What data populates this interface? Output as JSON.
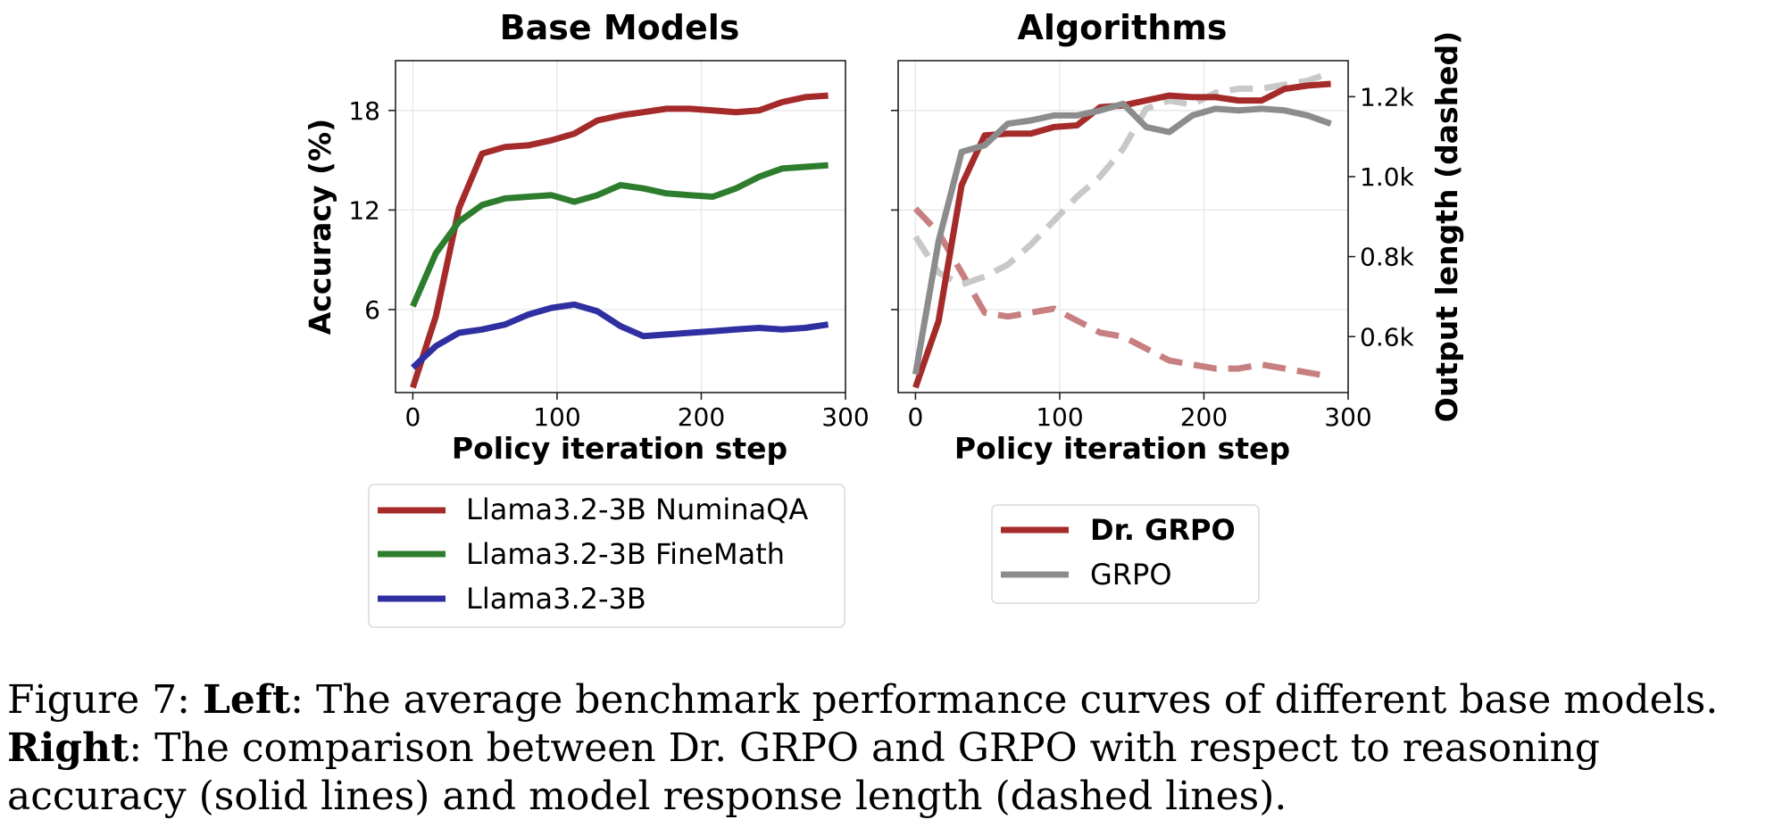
{
  "chart_data": [
    {
      "type": "line",
      "title": "Base Models",
      "xlabel": "Policy iteration step",
      "ylabel": "Accuracy (%)",
      "xlim": [
        -12,
        300
      ],
      "ylim": [
        1,
        21
      ],
      "xticks": [
        0,
        100,
        200,
        300
      ],
      "yticks": [
        6,
        12,
        18
      ],
      "grid": true,
      "legend_position": "below",
      "x": [
        0,
        16,
        32,
        48,
        64,
        80,
        96,
        112,
        128,
        144,
        160,
        176,
        192,
        208,
        224,
        240,
        256,
        272,
        288
      ],
      "series": [
        {
          "name": "Llama3.2-3B NuminaQA",
          "color": "#a52a2a",
          "values": [
            1.3,
            5.6,
            12.1,
            15.4,
            15.8,
            15.9,
            16.2,
            16.6,
            17.4,
            17.7,
            17.9,
            18.1,
            18.1,
            18.0,
            17.9,
            18.0,
            18.5,
            18.8,
            18.9
          ]
        },
        {
          "name": "Llama3.2-3B FineMath",
          "color": "#2e7d2e",
          "values": [
            6.2,
            9.4,
            11.3,
            12.3,
            12.7,
            12.8,
            12.9,
            12.5,
            12.9,
            13.5,
            13.3,
            13.0,
            12.9,
            12.8,
            13.3,
            14.0,
            14.5,
            14.6,
            14.7
          ]
        },
        {
          "name": "Llama3.2-3B",
          "color": "#2f2fa2",
          "values": [
            2.5,
            3.8,
            4.6,
            4.8,
            5.1,
            5.7,
            6.1,
            6.3,
            5.9,
            5.0,
            4.4,
            4.5,
            4.6,
            4.7,
            4.8,
            4.9,
            4.8,
            4.9,
            5.1
          ]
        }
      ]
    },
    {
      "type": "line",
      "title": "Algorithms",
      "xlabel": "Policy iteration step",
      "ylabel": "",
      "ylabel_right": "Output length (dashed)",
      "xlim": [
        -12,
        300
      ],
      "ylim": [
        1,
        21
      ],
      "ylim_right": [
        0.46,
        1.29
      ],
      "xticks": [
        0,
        100,
        200,
        300
      ],
      "yticks": [
        6,
        12,
        18
      ],
      "yticks_right": [
        0.6,
        0.8,
        1.0,
        1.2
      ],
      "yticklabels_right": [
        "0.6k",
        "0.8k",
        "1.0k",
        "1.2k"
      ],
      "grid": true,
      "legend_position": "below",
      "x": [
        0,
        16,
        32,
        48,
        64,
        80,
        96,
        112,
        128,
        144,
        160,
        176,
        192,
        208,
        224,
        240,
        256,
        272,
        288
      ],
      "series": [
        {
          "name": "Dr. GRPO",
          "color": "#a52a2a",
          "style": "solid",
          "axis": "left",
          "values": [
            1.3,
            5.3,
            13.5,
            16.5,
            16.6,
            16.6,
            17.0,
            17.1,
            18.2,
            18.3,
            18.6,
            18.9,
            18.8,
            18.8,
            18.6,
            18.6,
            19.3,
            19.5,
            19.6
          ]
        },
        {
          "name": "GRPO",
          "color": "#8c8c8c",
          "style": "solid",
          "axis": "left",
          "values": [
            2.1,
            10.1,
            15.5,
            15.9,
            17.2,
            17.4,
            17.7,
            17.7,
            18.0,
            18.4,
            17.0,
            16.7,
            17.7,
            18.1,
            18.0,
            18.1,
            18.0,
            17.7,
            17.2
          ]
        },
        {
          "name": "Dr. GRPO",
          "color": "#c87f7f",
          "style": "dashed",
          "axis": "right",
          "values": [
            0.92,
            0.86,
            0.76,
            0.66,
            0.65,
            0.66,
            0.67,
            0.64,
            0.61,
            0.6,
            0.57,
            0.54,
            0.53,
            0.52,
            0.52,
            0.53,
            0.52,
            0.51,
            0.5
          ]
        },
        {
          "name": "GRPO",
          "color": "#c8c8c8",
          "style": "dashed",
          "axis": "right",
          "values": [
            0.85,
            0.76,
            0.73,
            0.75,
            0.78,
            0.83,
            0.89,
            0.95,
            1.0,
            1.07,
            1.17,
            1.19,
            1.18,
            1.21,
            1.22,
            1.22,
            1.23,
            1.24,
            1.26
          ]
        }
      ]
    }
  ],
  "legends": {
    "left": [
      "Llama3.2-3B NuminaQA",
      "Llama3.2-3B FineMath",
      "Llama3.2-3B"
    ],
    "right": [
      "Dr. GRPO",
      "GRPO"
    ]
  },
  "caption": {
    "fig_label": "Figure 7:",
    "left_word": "Left",
    "left_text": ": The average benchmark performance curves of different base models.",
    "right_word": "Right",
    "right_text": ": The comparison between Dr. GRPO and GRPO with respect to reasoning accuracy (solid lines) and model response length (dashed lines)."
  }
}
